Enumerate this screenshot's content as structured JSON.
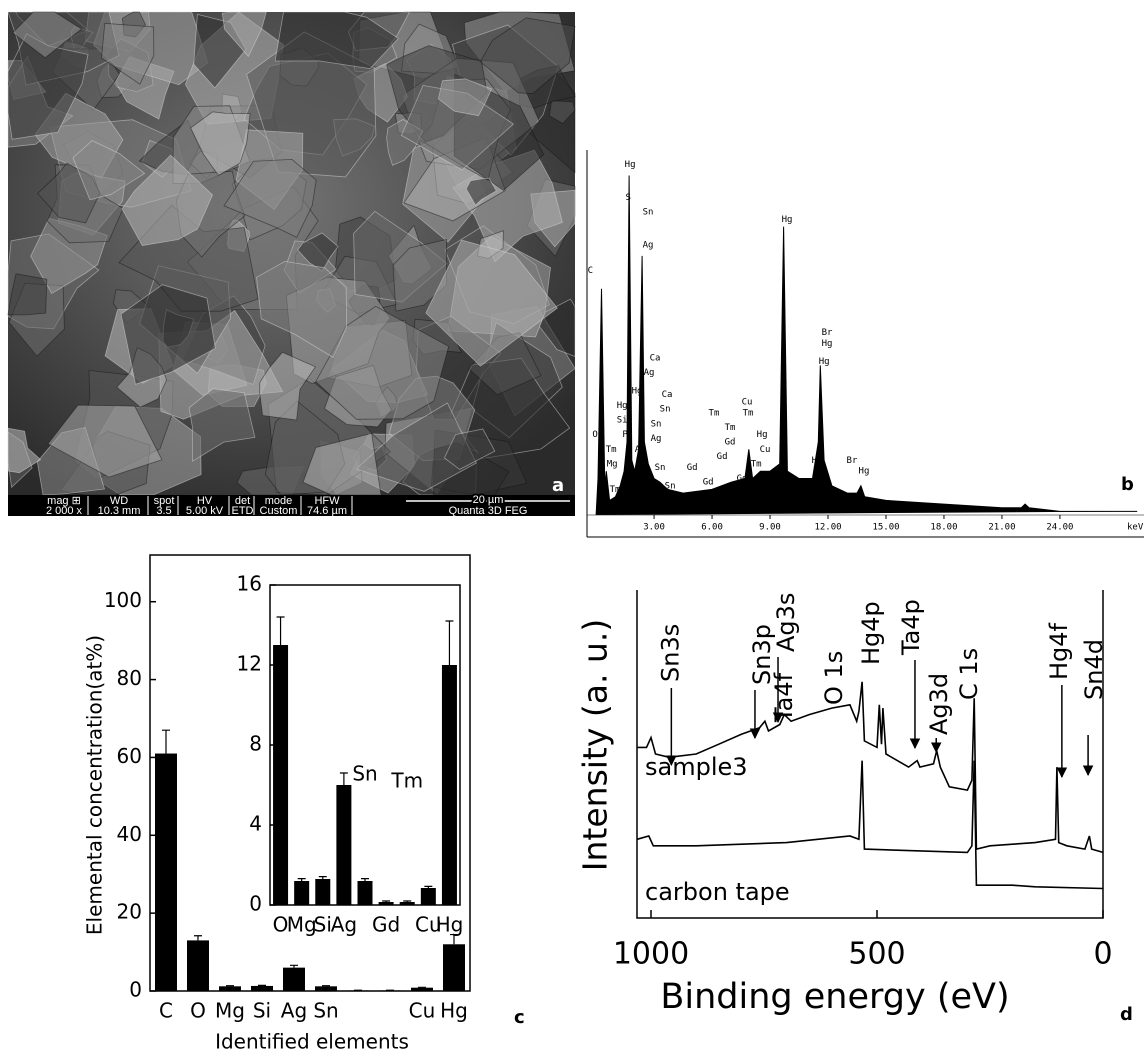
{
  "sem_image": {
    "panel_label": "a",
    "info_bar": [
      {
        "label": "mag ⊞",
        "value": "2 000 x"
      },
      {
        "label": "WD",
        "value": "10.3 mm"
      },
      {
        "label": "spot",
        "value": "3.5"
      },
      {
        "label": "HV",
        "value": "5.00 kV"
      },
      {
        "label": "det",
        "value": "ETD"
      },
      {
        "label": "mode",
        "value": "Custom"
      },
      {
        "label": "HFW",
        "value": "74.6 µm"
      }
    ],
    "scale_bar": "20 µm",
    "instrument": "Quanta 3D FEG"
  },
  "chart_data": [
    {
      "type": "area",
      "panel_label": "b",
      "xlabel": "keV",
      "color": "#000000",
      "x": [
        0,
        0.1,
        0.28,
        0.45,
        0.53,
        0.7,
        1.0,
        1.25,
        1.45,
        1.6,
        1.71,
        1.85,
        2.0,
        2.2,
        2.38,
        2.5,
        2.7,
        3.0,
        3.3,
        3.7,
        4.5,
        6,
        7,
        7.7,
        7.9,
        8.1,
        8.5,
        9.0,
        9.5,
        9.7,
        9.9,
        10.5,
        11.2,
        11.5,
        11.6,
        11.8,
        12.2,
        13.0,
        13.5,
        13.7,
        13.9,
        15,
        18,
        21,
        22,
        22.2,
        22.4,
        24,
        28
      ],
      "values": [
        0,
        10,
        62,
        8,
        12,
        4,
        5,
        8,
        12,
        20,
        93,
        15,
        12,
        18,
        71,
        20,
        14,
        10,
        9,
        7,
        6,
        7,
        9,
        10,
        18,
        10,
        12,
        12,
        14,
        79,
        12,
        10,
        10,
        20,
        41,
        15,
        8,
        6,
        6,
        8,
        5,
        4,
        3,
        2,
        2,
        3,
        2,
        1,
        1
      ],
      "xlim": [
        -0.47,
        28.35
      ],
      "ylim": [
        0,
        100
      ],
      "xticks": [
        {
          "value": 3,
          "label": "3.00"
        },
        {
          "value": 6,
          "label": "6.00"
        },
        {
          "value": 9,
          "label": "9.00"
        },
        {
          "value": 12,
          "label": "12.00"
        },
        {
          "value": 15,
          "label": "15.00"
        },
        {
          "value": 18,
          "label": "18.00"
        },
        {
          "value": 21,
          "label": "21.00"
        },
        {
          "value": 24,
          "label": "24.00"
        }
      ],
      "annotations": [
        {
          "text": "Hg",
          "x": 1.76,
          "y": 96
        },
        {
          "text": "S",
          "x": 1.66,
          "y": 87
        },
        {
          "text": "Sn",
          "x": 2.69,
          "y": 83
        },
        {
          "text": "Ag",
          "x": 2.69,
          "y": 74
        },
        {
          "text": "C",
          "x": -0.3,
          "y": 67
        },
        {
          "text": "Ca",
          "x": 3.05,
          "y": 43
        },
        {
          "text": "Ag",
          "x": 2.74,
          "y": 39
        },
        {
          "text": "Hg",
          "x": 2.12,
          "y": 34
        },
        {
          "text": "Ca",
          "x": 3.67,
          "y": 33
        },
        {
          "text": "Sn",
          "x": 3.57,
          "y": 29
        },
        {
          "text": "Hg",
          "x": 1.35,
          "y": 30
        },
        {
          "text": "Si",
          "x": 1.35,
          "y": 26
        },
        {
          "text": "Sn",
          "x": 3.1,
          "y": 25
        },
        {
          "text": "Ag",
          "x": 3.1,
          "y": 21
        },
        {
          "text": "O",
          "x": -0.05,
          "y": 22
        },
        {
          "text": "P",
          "x": 1.5,
          "y": 22
        },
        {
          "text": "Ag",
          "x": 2.28,
          "y": 18
        },
        {
          "text": "Tm",
          "x": 0.78,
          "y": 18
        },
        {
          "text": "Mg",
          "x": 0.83,
          "y": 14
        },
        {
          "text": "Sn",
          "x": 3.31,
          "y": 13
        },
        {
          "text": "Sn",
          "x": 3.83,
          "y": 8
        },
        {
          "text": "Tm",
          "x": 0.98,
          "y": 7
        },
        {
          "text": "Gd",
          "x": 4.97,
          "y": 13
        },
        {
          "text": "Gd",
          "x": 5.8,
          "y": 9
        },
        {
          "text": "Tm",
          "x": 6.1,
          "y": 28
        },
        {
          "text": "Tm",
          "x": 6.93,
          "y": 24
        },
        {
          "text": "Gd",
          "x": 6.93,
          "y": 20
        },
        {
          "text": "Gd",
          "x": 6.52,
          "y": 16
        },
        {
          "text": "Cu",
          "x": 7.81,
          "y": 31
        },
        {
          "text": "Tm",
          "x": 7.86,
          "y": 28
        },
        {
          "text": "Hg",
          "x": 8.59,
          "y": 22
        },
        {
          "text": "Cu",
          "x": 8.74,
          "y": 18
        },
        {
          "text": "Tm",
          "x": 8.28,
          "y": 14
        },
        {
          "text": "Gd",
          "x": 7.55,
          "y": 10
        },
        {
          "text": "Tm",
          "x": 9.26,
          "y": 11
        },
        {
          "text": "Hg",
          "x": 9.88,
          "y": 81
        },
        {
          "text": "Br",
          "x": 11.95,
          "y": 50
        },
        {
          "text": "Hg",
          "x": 11.95,
          "y": 47
        },
        {
          "text": "Hg",
          "x": 11.8,
          "y": 42
        },
        {
          "text": "Hg",
          "x": 11.43,
          "y": 15
        },
        {
          "text": "Br",
          "x": 13.24,
          "y": 15
        },
        {
          "text": "Hg",
          "x": 13.86,
          "y": 12
        }
      ]
    },
    {
      "type": "bar",
      "panel_label": "c",
      "ylabel": "Elemental concentration(at%)",
      "xlabel": "Identified elements",
      "color": "#000000",
      "categories": [
        "C",
        "O",
        "Mg",
        "Si",
        "Ag",
        "Sn",
        null,
        null,
        "Cu",
        "Hg"
      ],
      "values": [
        61,
        13,
        1.2,
        1.3,
        6,
        1.2,
        0.15,
        0.15,
        0.85,
        12
      ],
      "errors": [
        6,
        1.2,
        0.15,
        0.15,
        0.6,
        0.15,
        0.05,
        0.05,
        0.1,
        2.5
      ],
      "ylim": [
        0,
        112
      ],
      "yticks": [
        0,
        20,
        40,
        60,
        80,
        100
      ]
    },
    {
      "type": "bar",
      "color": "#000000",
      "categories": [
        "O",
        "Mg",
        "Si",
        "Ag",
        "Sn",
        "Gd",
        "Tm",
        "Cu",
        "Hg"
      ],
      "values": [
        13,
        1.2,
        1.3,
        6,
        1.2,
        0.15,
        0.15,
        0.85,
        12
      ],
      "errors": [
        1.4,
        0.12,
        0.12,
        0.6,
        0.12,
        0.05,
        0.05,
        0.08,
        2.2
      ],
      "ylim": [
        0,
        16
      ],
      "yticks": [
        0,
        4,
        8,
        12,
        16
      ]
    },
    {
      "type": "line",
      "panel_label": "d",
      "ylabel": "Intensity (a. u.)",
      "xlabel": "Binding energy (eV)",
      "xlim": [
        1031,
        0
      ],
      "ylim": [
        0,
        100
      ],
      "xticks": [
        1000,
        500,
        0
      ],
      "series": [
        {
          "name": "sample3",
          "color": "#000000",
          "x": [
            1031,
            1010,
            1000,
            990,
            960,
            900,
            850,
            800,
            760,
            748,
            740,
            715,
            705,
            690,
            650,
            600,
            560,
            545,
            540,
            533,
            528,
            500,
            495,
            490,
            487,
            480,
            430,
            411,
            405,
            375,
            368,
            360,
            340,
            300,
            290,
            285,
            280,
            250,
            200,
            150,
            105,
            102,
            98,
            80,
            40,
            30,
            25,
            0
          ],
          "values": [
            52,
            52,
            55,
            50,
            49,
            50,
            53,
            56,
            58,
            60,
            57,
            59,
            62,
            60,
            62,
            64,
            65,
            60,
            63,
            72,
            54,
            52,
            65,
            53,
            64,
            50,
            46,
            48,
            46,
            47,
            51,
            46,
            40,
            39,
            42,
            67,
            21,
            22,
            22.5,
            23,
            24,
            46,
            23,
            22,
            21,
            25,
            21,
            20
          ]
        },
        {
          "name": "carbon tape",
          "color": "#000000",
          "x": [
            1031,
            1005,
            995,
            900,
            700,
            560,
            540,
            533,
            528,
            300,
            290,
            285,
            280,
            200,
            150,
            0
          ],
          "values": [
            24,
            25,
            22,
            22,
            23,
            25,
            24,
            48,
            21,
            20,
            22,
            48,
            10,
            10,
            9.5,
            9
          ]
        }
      ],
      "annotations": [
        {
          "text": "Sn3s",
          "x": 955
        },
        {
          "text": "Sn3p",
          "x": 770
        },
        {
          "text": "Ag3s",
          "x": 719
        },
        {
          "text": "Ta4f",
          "x": 719
        },
        {
          "text": "O 1s",
          "x": 533
        },
        {
          "text": "Hg4p",
          "x": 493
        },
        {
          "text": "Ta4p",
          "x": 416
        },
        {
          "text": "Ag3d",
          "x": 369
        },
        {
          "text": "C 1s",
          "x": 285
        },
        {
          "text": "Hg4f",
          "x": 91
        },
        {
          "text": "Sn4d",
          "x": 33
        }
      ]
    }
  ]
}
